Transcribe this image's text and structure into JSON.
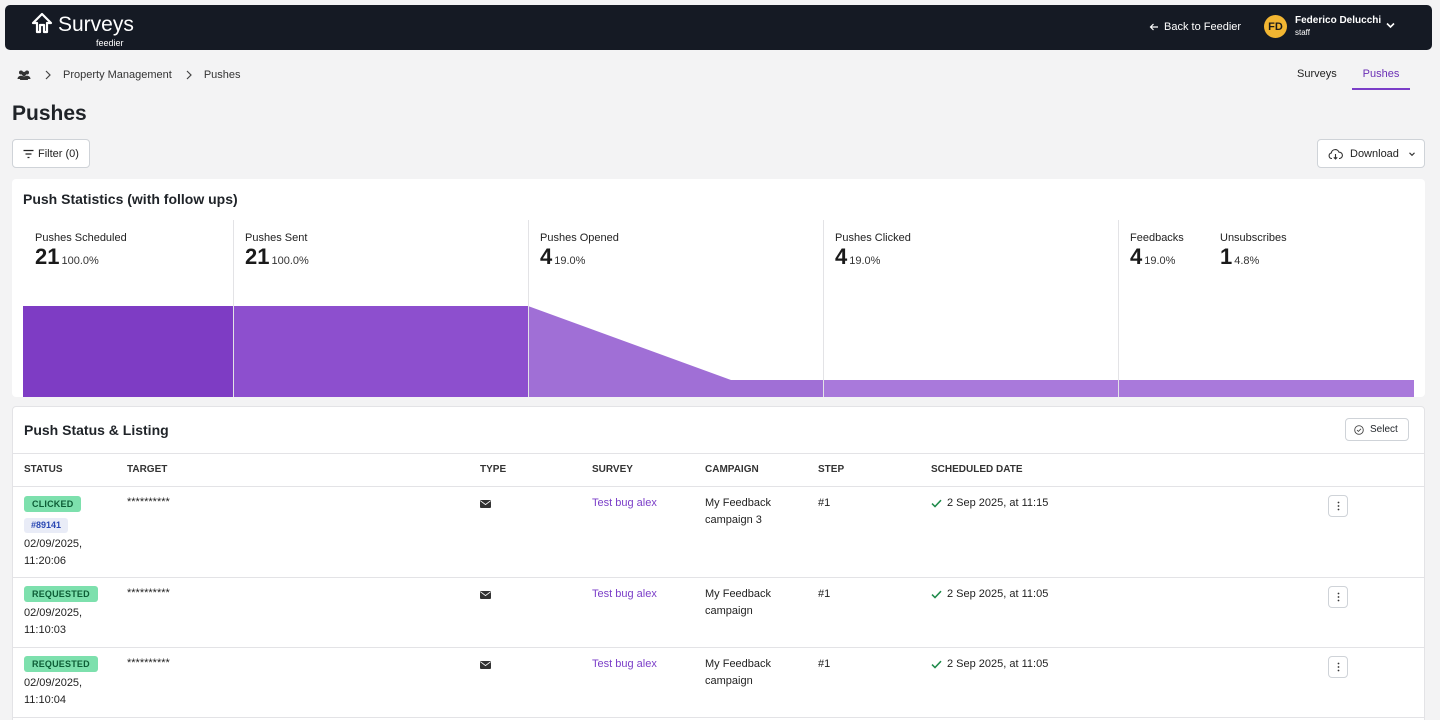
{
  "topbar": {
    "logo_title": "Surveys",
    "logo_sub": "feedier",
    "back_label": "Back to Feedier",
    "user": {
      "initials": "FD",
      "name": "Federico Delucchi",
      "role": "staff"
    }
  },
  "breadcrumb": {
    "items": [
      "Property Management",
      "Pushes"
    ]
  },
  "nav_tabs": [
    {
      "label": "Surveys",
      "active": false
    },
    {
      "label": "Pushes",
      "active": true
    }
  ],
  "page": {
    "title": "Pushes"
  },
  "filter": {
    "label": "Filter (0)"
  },
  "download": {
    "label": "Download"
  },
  "stats": {
    "title": "Push Statistics (with follow ups)",
    "items": [
      {
        "label": "Pushes Scheduled",
        "value": "21",
        "pct": "100.0%"
      },
      {
        "label": "Pushes Sent",
        "value": "21",
        "pct": "100.0%"
      },
      {
        "label": "Pushes Opened",
        "value": "4",
        "pct": "19.0%"
      },
      {
        "label": "Pushes Clicked",
        "value": "4",
        "pct": "19.0%"
      },
      {
        "label": "Feedbacks",
        "value": "4",
        "pct": "19.0%"
      },
      {
        "label": "Unsubscribes",
        "value": "1",
        "pct": "4.8%"
      }
    ],
    "funnel_colors": [
      "#7e3cc4",
      "#8d4fce",
      "#a06fd6",
      "#a979db"
    ]
  },
  "listing": {
    "title": "Push Status & Listing",
    "select_label": "Select",
    "columns": [
      "STATUS",
      "TARGET",
      "TYPE",
      "SURVEY",
      "CAMPAIGN",
      "STEP",
      "SCHEDULED DATE"
    ],
    "rows": [
      {
        "status": "CLICKED",
        "id": "#89141",
        "status_date": "02/09/2025, 11:20:06",
        "target": "**********",
        "type_icon": "mail-icon",
        "survey": "Test bug alex",
        "campaign": "My Feedback campaign 3",
        "step": "#1",
        "scheduled": "2 Sep 2025, at 11:15"
      },
      {
        "status": "REQUESTED",
        "id": "",
        "status_date": "02/09/2025, 11:10:03",
        "target": "**********",
        "type_icon": "mail-icon",
        "survey": "Test bug alex",
        "campaign": "My Feedback campaign",
        "step": "#1",
        "scheduled": "2 Sep 2025, at 11:05"
      },
      {
        "status": "REQUESTED",
        "id": "",
        "status_date": "02/09/2025, 11:10:04",
        "target": "**********",
        "type_icon": "mail-icon",
        "survey": "Test bug alex",
        "campaign": "My Feedback campaign",
        "step": "#1",
        "scheduled": "2 Sep 2025, at 11:05"
      }
    ]
  }
}
